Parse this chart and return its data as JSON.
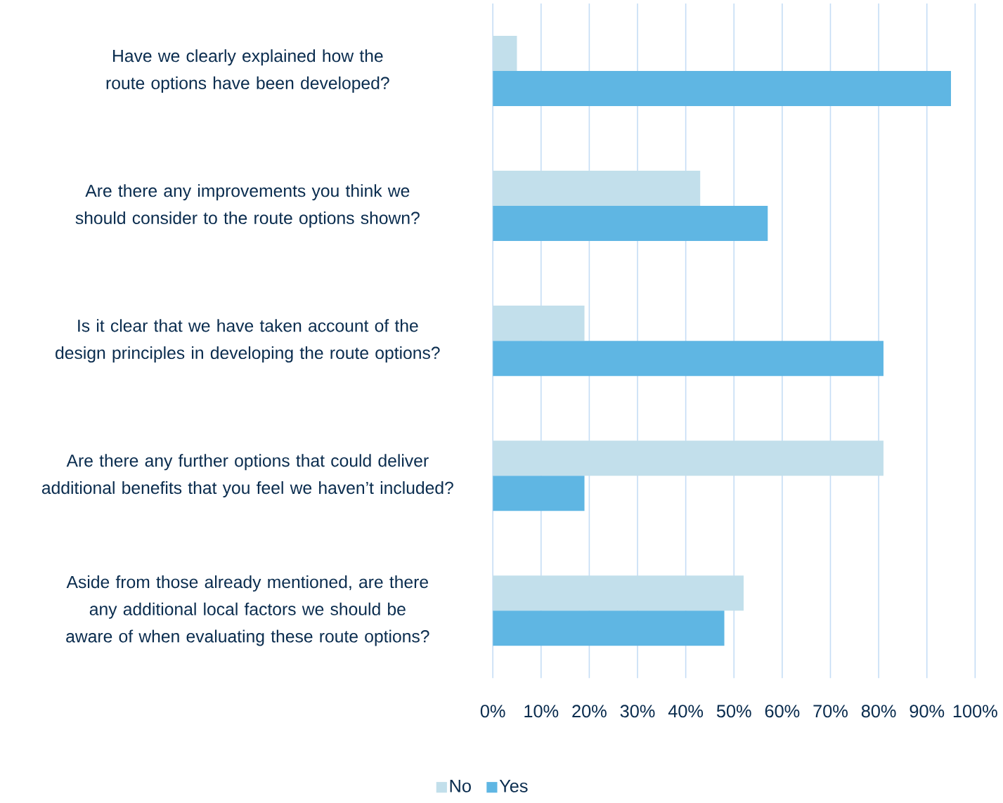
{
  "chart_data": {
    "type": "bar",
    "orientation": "horizontal",
    "categories": [
      "Have we clearly explained how the route options have been developed?",
      "Are there any improvements you think we should consider to the route options shown?",
      "Is it clear that we have taken account of the design principles in developing the route options?",
      "Are there any further options that could deliver additional benefits that you feel we haven’t included?",
      "Aside from those already mentioned, are there any additional local factors we should be aware of when evaluating these route options?"
    ],
    "series": [
      {
        "name": "No",
        "color": "#c2dfeb",
        "values": [
          5,
          43,
          19,
          81,
          52
        ]
      },
      {
        "name": "Yes",
        "color": "#5fb6e3",
        "values": [
          95,
          57,
          81,
          19,
          48
        ]
      }
    ],
    "xlim": [
      0,
      100
    ],
    "xticks": [
      {
        "value": 0,
        "label": "0%"
      },
      {
        "value": 10,
        "label": "10%"
      },
      {
        "value": 20,
        "label": "20%"
      },
      {
        "value": 30,
        "label": "30%"
      },
      {
        "value": 40,
        "label": "40%"
      },
      {
        "value": 50,
        "label": "50%"
      },
      {
        "value": 60,
        "label": "60%"
      },
      {
        "value": 70,
        "label": "70%"
      },
      {
        "value": 80,
        "label": "80%"
      },
      {
        "value": 90,
        "label": "90%"
      },
      {
        "value": 100,
        "label": "100%"
      }
    ],
    "grid": "x",
    "legend": "bottom"
  }
}
